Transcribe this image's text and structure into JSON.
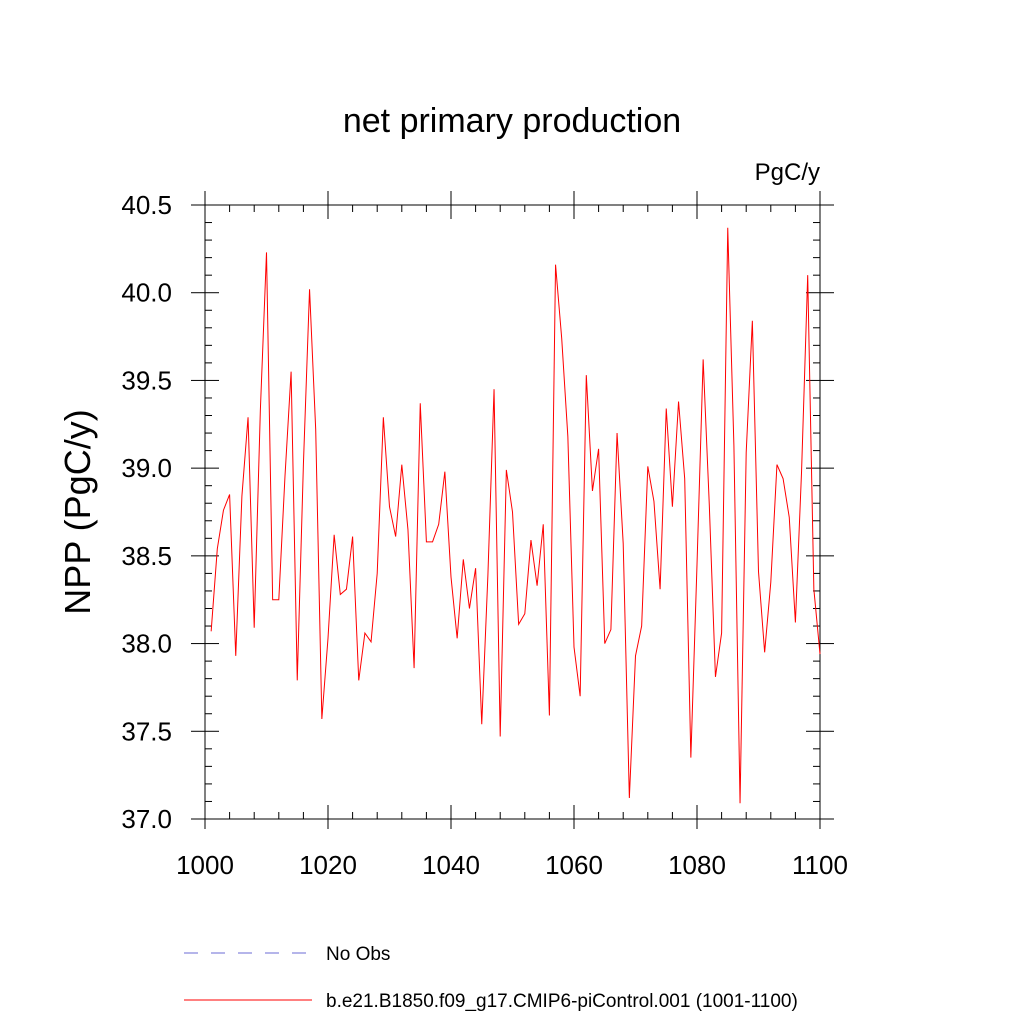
{
  "chart_data": {
    "type": "line",
    "title": "net primary production",
    "units_label": "PgC/y",
    "xlabel": "",
    "ylabel": "NPP  (PgC/y)",
    "xlim": [
      1000,
      1100
    ],
    "ylim": [
      37.0,
      40.5
    ],
    "x_ticks": [
      1000,
      1020,
      1040,
      1060,
      1080,
      1100
    ],
    "x_tick_labels": [
      "1000",
      "1020",
      "1040",
      "1060",
      "1080",
      "1100"
    ],
    "y_ticks": [
      37.0,
      37.5,
      38.0,
      38.5,
      39.0,
      39.5,
      40.0,
      40.5
    ],
    "y_tick_labels": [
      "37.0",
      "37.5",
      "38.0",
      "38.5",
      "39.0",
      "39.5",
      "40.0",
      "40.5"
    ],
    "legend": [
      {
        "label": "No Obs",
        "color": "#6b6bd6",
        "style": "dashed"
      },
      {
        "label": "b.e21.B1850.f09_g17.CMIP6-piControl.001 (1001-1100)",
        "color": "#ff0000",
        "style": "solid"
      }
    ],
    "series": [
      {
        "name": "b.e21.B1850.f09_g17.CMIP6-piControl.001 (1001-1100)",
        "color": "#ff0000",
        "x": [
          1001,
          1002,
          1003,
          1004,
          1005,
          1006,
          1007,
          1008,
          1009,
          1010,
          1011,
          1012,
          1013,
          1014,
          1015,
          1016,
          1017,
          1018,
          1019,
          1020,
          1021,
          1022,
          1023,
          1024,
          1025,
          1026,
          1027,
          1028,
          1029,
          1030,
          1031,
          1032,
          1033,
          1034,
          1035,
          1036,
          1037,
          1038,
          1039,
          1040,
          1041,
          1042,
          1043,
          1044,
          1045,
          1046,
          1047,
          1048,
          1049,
          1050,
          1051,
          1052,
          1053,
          1054,
          1055,
          1056,
          1057,
          1058,
          1059,
          1060,
          1061,
          1062,
          1063,
          1064,
          1065,
          1066,
          1067,
          1068,
          1069,
          1070,
          1071,
          1072,
          1073,
          1074,
          1075,
          1076,
          1077,
          1078,
          1079,
          1080,
          1081,
          1082,
          1083,
          1084,
          1085,
          1086,
          1087,
          1088,
          1089,
          1090,
          1091,
          1092,
          1093,
          1094,
          1095,
          1096,
          1097,
          1098,
          1099,
          1100
        ],
        "values": [
          38.07,
          38.54,
          38.76,
          38.85,
          37.93,
          38.84,
          39.29,
          38.09,
          39.33,
          40.23,
          38.25,
          38.25,
          38.95,
          39.55,
          37.79,
          39.02,
          40.02,
          39.22,
          37.57,
          38.03,
          38.62,
          38.28,
          38.31,
          38.61,
          37.79,
          38.06,
          38.01,
          38.4,
          39.29,
          38.78,
          38.61,
          39.02,
          38.65,
          37.86,
          39.37,
          38.58,
          38.58,
          38.68,
          38.98,
          38.38,
          38.03,
          38.48,
          38.2,
          38.43,
          37.54,
          38.39,
          39.45,
          37.47,
          38.99,
          38.75,
          38.11,
          38.17,
          38.59,
          38.33,
          38.68,
          37.59,
          40.16,
          39.74,
          39.18,
          37.98,
          37.7,
          39.53,
          38.87,
          39.11,
          38.0,
          38.08,
          39.2,
          38.57,
          37.12,
          37.93,
          38.1,
          39.01,
          38.81,
          38.31,
          39.34,
          38.78,
          39.38,
          38.94,
          37.35,
          38.45,
          39.62,
          38.79,
          37.81,
          38.06,
          40.37,
          39.13,
          37.09,
          39.09,
          39.84,
          38.41,
          37.95,
          38.35,
          39.02,
          38.94,
          38.72,
          38.12,
          38.98,
          40.1,
          38.31,
          37.94
        ]
      }
    ]
  }
}
